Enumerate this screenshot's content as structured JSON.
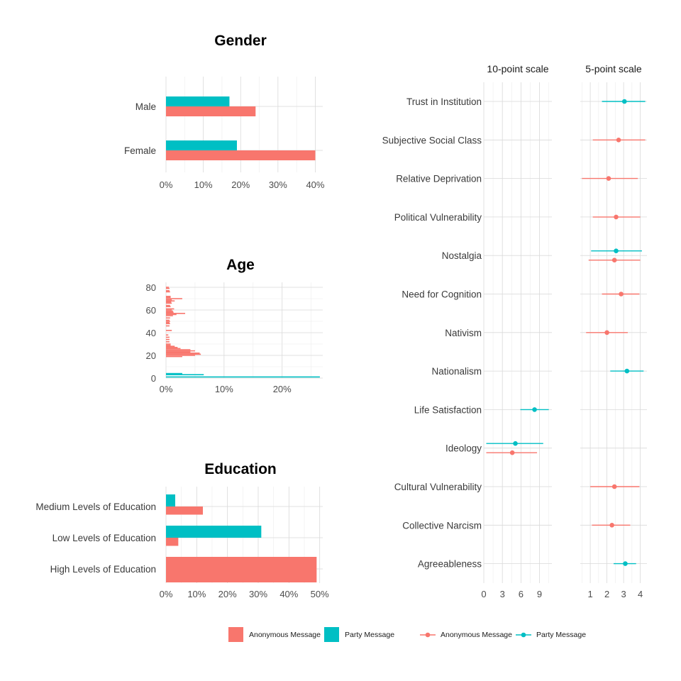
{
  "colors": {
    "anonymous": "#F8766D",
    "party": "#00BFC4"
  },
  "chart_data": [
    {
      "type": "bar",
      "title": "Gender",
      "orientation": "horizontal",
      "categories": [
        "Male",
        "Female"
      ],
      "series": [
        {
          "name": "Party Message",
          "values": [
            0.17,
            0.19
          ]
        },
        {
          "name": "Anonymous Message",
          "values": [
            0.24,
            0.4
          ]
        }
      ],
      "xlim": [
        0,
        0.42
      ],
      "xticks": [
        0,
        0.1,
        0.2,
        0.3,
        0.4
      ],
      "xtick_labels": [
        "0%",
        "10%",
        "20%",
        "30%",
        "40%"
      ]
    },
    {
      "type": "bar",
      "title": "Age",
      "orientation": "horizontal",
      "yticks": [
        0,
        20,
        40,
        60,
        80
      ],
      "xticks": [
        0,
        0.1,
        0.2
      ],
      "xtick_labels": [
        "0%",
        "10%",
        "20%"
      ],
      "xlim": [
        0,
        0.27
      ],
      "ylim": [
        0,
        82
      ],
      "series": [
        {
          "name": "Party Message",
          "points": [
            [
              1,
              0.265
            ],
            [
              3,
              0.065
            ],
            [
              4,
              0.028
            ]
          ]
        },
        {
          "name": "Anonymous Message",
          "points": [
            [
              19,
              0.028
            ],
            [
              20,
              0.05
            ],
            [
              21,
              0.06
            ],
            [
              22,
              0.058
            ],
            [
              23,
              0.042
            ],
            [
              24,
              0.05
            ],
            [
              25,
              0.042
            ],
            [
              26,
              0.025
            ],
            [
              27,
              0.02
            ],
            [
              28,
              0.015
            ],
            [
              29,
              0.008
            ],
            [
              30,
              0.008
            ],
            [
              32,
              0.006
            ],
            [
              34,
              0.006
            ],
            [
              36,
              0.006
            ],
            [
              38,
              0.004
            ],
            [
              42,
              0.01
            ],
            [
              46,
              0.006
            ],
            [
              48,
              0.007
            ],
            [
              49,
              0.006
            ],
            [
              50,
              0.007
            ],
            [
              51,
              0.006
            ],
            [
              53,
              0.007
            ],
            [
              55,
              0.012
            ],
            [
              56,
              0.018
            ],
            [
              57,
              0.033
            ],
            [
              58,
              0.013
            ],
            [
              59,
              0.012
            ],
            [
              60,
              0.01
            ],
            [
              61,
              0.014
            ],
            [
              63,
              0.008
            ],
            [
              64,
              0.007
            ],
            [
              66,
              0.01
            ],
            [
              67,
              0.009
            ],
            [
              68,
              0.015
            ],
            [
              69,
              0.01
            ],
            [
              70,
              0.028
            ],
            [
              71,
              0.008
            ],
            [
              72,
              0.008
            ],
            [
              76,
              0.007
            ],
            [
              77,
              0.006
            ],
            [
              79,
              0.006
            ],
            [
              80,
              0.005
            ]
          ]
        }
      ]
    },
    {
      "type": "bar",
      "title": "Education",
      "orientation": "horizontal",
      "categories": [
        "Medium Levels of Education",
        "Low Levels of Education",
        "High Levels of Education"
      ],
      "series": [
        {
          "name": "Party Message",
          "values": [
            0.03,
            0.31,
            0
          ]
        },
        {
          "name": "Anonymous Message",
          "values": [
            0.12,
            0.04,
            0.49
          ]
        }
      ],
      "xlim": [
        0,
        0.51
      ],
      "xticks": [
        0,
        0.1,
        0.2,
        0.3,
        0.4,
        0.5
      ],
      "xtick_labels": [
        "0%",
        "10%",
        "20%",
        "30%",
        "40%",
        "50%"
      ]
    },
    {
      "type": "scatter",
      "subtype": "pointrange",
      "facets": [
        "10-point scale",
        "5-point scale"
      ],
      "categories": [
        "Trust in Institution",
        "Subjective Social Class",
        "Relative Deprivation",
        "Political Vulnerability",
        "Nostalgia",
        "Need for Cognition",
        "Nativism",
        "Nationalism",
        "Life Satisfaction",
        "Ideology",
        "Cultural Vulnerability",
        "Collective Narcism",
        "Agreeableness"
      ],
      "facet_axes": [
        {
          "xlim": [
            0,
            11
          ],
          "xticks": [
            0,
            3,
            6,
            9
          ],
          "xtick_labels": [
            "0",
            "3",
            "6",
            "9"
          ]
        },
        {
          "xlim": [
            0.4,
            4.4
          ],
          "xticks": [
            1,
            2,
            3,
            4
          ],
          "xtick_labels": [
            "1",
            "2",
            "3",
            "4"
          ]
        }
      ],
      "points": [
        {
          "category": "Trust in Institution",
          "facet": 1,
          "series": "Party Message",
          "mean": 3.05,
          "low": 1.7,
          "high": 4.3
        },
        {
          "category": "Subjective Social Class",
          "facet": 1,
          "series": "Anonymous Message",
          "mean": 2.7,
          "low": 1.15,
          "high": 4.3
        },
        {
          "category": "Relative Deprivation",
          "facet": 1,
          "series": "Anonymous Message",
          "mean": 2.1,
          "low": 0.5,
          "high": 3.85
        },
        {
          "category": "Political Vulnerability",
          "facet": 1,
          "series": "Anonymous Message",
          "mean": 2.55,
          "low": 1.15,
          "high": 4.0
        },
        {
          "category": "Nostalgia",
          "facet": 1,
          "series": "Party Message",
          "mean": 2.55,
          "low": 1.05,
          "high": 4.1
        },
        {
          "category": "Nostalgia",
          "facet": 1,
          "series": "Anonymous Message",
          "mean": 2.45,
          "low": 0.9,
          "high": 4.0
        },
        {
          "category": "Need for Cognition",
          "facet": 1,
          "series": "Anonymous Message",
          "mean": 2.85,
          "low": 1.7,
          "high": 3.95
        },
        {
          "category": "Nativism",
          "facet": 1,
          "series": "Anonymous Message",
          "mean": 2.0,
          "low": 0.75,
          "high": 3.25
        },
        {
          "category": "Nationalism",
          "facet": 1,
          "series": "Party Message",
          "mean": 3.2,
          "low": 2.2,
          "high": 4.2
        },
        {
          "category": "Life Satisfaction",
          "facet": 0,
          "series": "Party Message",
          "mean": 8.2,
          "low": 5.9,
          "high": 10.5
        },
        {
          "category": "Ideology",
          "facet": 0,
          "series": "Party Message",
          "mean": 5.1,
          "low": 0.4,
          "high": 9.6
        },
        {
          "category": "Ideology",
          "facet": 0,
          "series": "Anonymous Message",
          "mean": 4.6,
          "low": 0.4,
          "high": 8.6
        },
        {
          "category": "Cultural Vulnerability",
          "facet": 1,
          "series": "Anonymous Message",
          "mean": 2.45,
          "low": 1.0,
          "high": 3.95
        },
        {
          "category": "Collective Narcism",
          "facet": 1,
          "series": "Anonymous Message",
          "mean": 2.3,
          "low": 1.1,
          "high": 3.4
        },
        {
          "category": "Agreeableness",
          "facet": 1,
          "series": "Party Message",
          "mean": 3.1,
          "low": 2.4,
          "high": 3.75
        }
      ]
    }
  ],
  "legend": {
    "bars": [
      {
        "label": "Anonymous Message",
        "series": "anonymous"
      },
      {
        "label": "Party Message",
        "series": "party"
      }
    ],
    "points": [
      {
        "label": "Anonymous Message",
        "series": "anonymous"
      },
      {
        "label": "Party Message",
        "series": "party"
      }
    ]
  }
}
